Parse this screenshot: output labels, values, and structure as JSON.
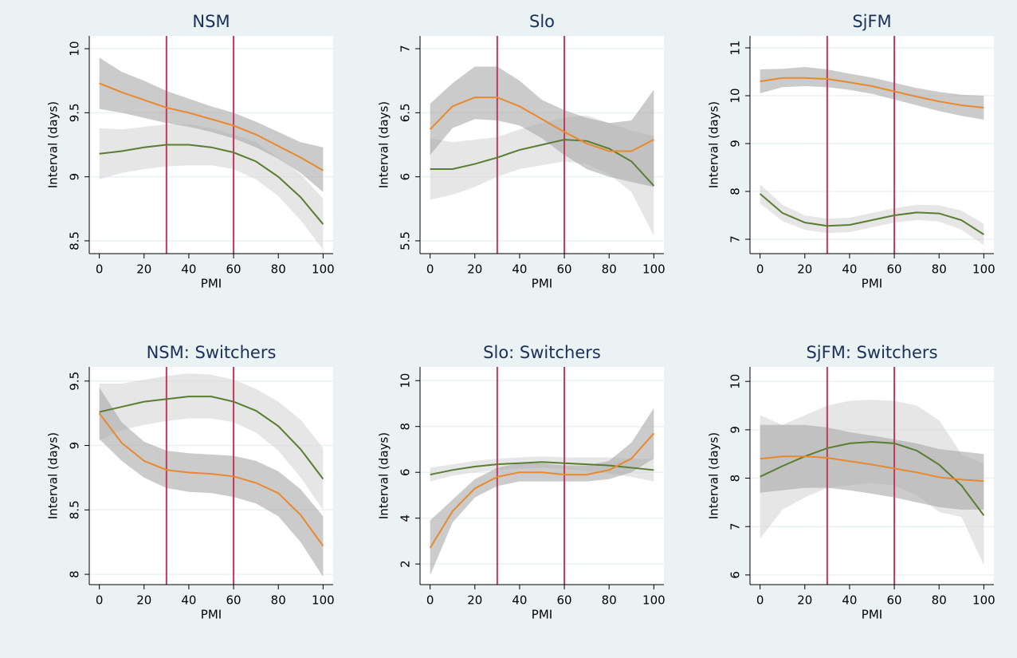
{
  "chart_data": [
    {
      "type": "line",
      "title": "NSM",
      "xlabel": "PMI",
      "ylabel": "Interval (days)",
      "x": [
        0,
        10,
        20,
        30,
        40,
        50,
        60,
        70,
        80,
        90,
        100
      ],
      "xlim": [
        -4.5,
        104.5
      ],
      "xticks": [
        0,
        20,
        40,
        60,
        80,
        100
      ],
      "ylim": [
        8.4,
        10.1
      ],
      "yticks": [
        8.5,
        9,
        9.5,
        10
      ],
      "grid": true,
      "vlines": [
        30,
        60
      ],
      "vline_color": "#c0395a",
      "series": [
        {
          "color": "#5a7d32",
          "band_color": "#d6d6d6",
          "values": [
            9.18,
            9.2,
            9.23,
            9.25,
            9.25,
            9.23,
            9.19,
            9.12,
            9.0,
            8.84,
            8.63
          ],
          "lower": [
            8.98,
            9.03,
            9.06,
            9.08,
            9.09,
            9.09,
            9.06,
            8.98,
            8.85,
            8.66,
            8.43
          ],
          "upper": [
            9.38,
            9.37,
            9.39,
            9.41,
            9.41,
            9.38,
            9.33,
            9.27,
            9.15,
            9.02,
            8.83
          ]
        },
        {
          "color": "#e8892e",
          "band_color": "#a8a8a8",
          "values": [
            9.73,
            9.66,
            9.6,
            9.54,
            9.5,
            9.45,
            9.4,
            9.33,
            9.24,
            9.15,
            9.05
          ],
          "lower": [
            9.53,
            9.5,
            9.46,
            9.42,
            9.39,
            9.35,
            9.3,
            9.23,
            9.14,
            9.03,
            8.88
          ],
          "upper": [
            9.93,
            9.82,
            9.75,
            9.67,
            9.61,
            9.55,
            9.5,
            9.43,
            9.35,
            9.27,
            9.23
          ]
        }
      ]
    },
    {
      "type": "line",
      "title": "Slo",
      "xlabel": "PMI",
      "ylabel": "Interval (days)",
      "x": [
        0,
        10,
        20,
        30,
        40,
        50,
        60,
        70,
        80,
        90,
        100
      ],
      "xlim": [
        -4.5,
        104.5
      ],
      "xticks": [
        0,
        20,
        40,
        60,
        80,
        100
      ],
      "ylim": [
        5.4,
        7.1
      ],
      "yticks": [
        5.5,
        6,
        6.5,
        7
      ],
      "grid": true,
      "vlines": [
        30,
        60
      ],
      "vline_color": "#c0395a",
      "series": [
        {
          "color": "#5a7d32",
          "band_color": "#d6d6d6",
          "values": [
            6.06,
            6.06,
            6.1,
            6.15,
            6.21,
            6.25,
            6.29,
            6.28,
            6.22,
            6.12,
            5.93
          ],
          "lower": [
            5.82,
            5.86,
            5.92,
            6.0,
            6.06,
            6.09,
            6.12,
            6.1,
            6.02,
            5.88,
            5.54
          ],
          "upper": [
            6.3,
            6.27,
            6.29,
            6.31,
            6.37,
            6.42,
            6.46,
            6.48,
            6.42,
            6.36,
            6.32
          ]
        },
        {
          "color": "#e8892e",
          "band_color": "#a8a8a8",
          "values": [
            6.37,
            6.55,
            6.62,
            6.62,
            6.55,
            6.45,
            6.35,
            6.26,
            6.2,
            6.2,
            6.29
          ],
          "lower": [
            6.17,
            6.38,
            6.45,
            6.44,
            6.4,
            6.3,
            6.17,
            6.06,
            6.0,
            5.96,
            5.92
          ],
          "upper": [
            6.57,
            6.73,
            6.86,
            6.86,
            6.75,
            6.6,
            6.52,
            6.46,
            6.42,
            6.44,
            6.68
          ]
        }
      ]
    },
    {
      "type": "line",
      "title": "SjFM",
      "xlabel": "PMI",
      "ylabel": "Interval (days)",
      "x": [
        0,
        10,
        20,
        30,
        40,
        50,
        60,
        70,
        80,
        90,
        100
      ],
      "xlim": [
        -4.5,
        104.5
      ],
      "xticks": [
        0,
        20,
        40,
        60,
        80,
        100
      ],
      "ylim": [
        6.7,
        11.25
      ],
      "yticks": [
        7,
        8,
        9,
        10,
        11
      ],
      "grid": true,
      "vlines": [
        30,
        60
      ],
      "vline_color": "#c0395a",
      "series": [
        {
          "color": "#5a7d32",
          "band_color": "#d6d6d6",
          "values": [
            7.95,
            7.55,
            7.35,
            7.28,
            7.3,
            7.4,
            7.5,
            7.56,
            7.54,
            7.4,
            7.1
          ],
          "lower": [
            7.75,
            7.38,
            7.2,
            7.13,
            7.15,
            7.25,
            7.35,
            7.4,
            7.37,
            7.2,
            6.88
          ],
          "upper": [
            8.15,
            7.72,
            7.5,
            7.43,
            7.45,
            7.55,
            7.65,
            7.72,
            7.71,
            7.6,
            7.32
          ]
        },
        {
          "color": "#e8892e",
          "band_color": "#a8a8a8",
          "values": [
            10.3,
            10.37,
            10.37,
            10.35,
            10.28,
            10.2,
            10.09,
            9.98,
            9.88,
            9.8,
            9.75
          ],
          "lower": [
            10.05,
            10.18,
            10.2,
            10.18,
            10.12,
            10.04,
            9.92,
            9.8,
            9.68,
            9.58,
            9.5
          ],
          "upper": [
            10.55,
            10.56,
            10.6,
            10.55,
            10.46,
            10.38,
            10.27,
            10.16,
            10.08,
            10.02,
            10.0
          ]
        }
      ]
    },
    {
      "type": "line",
      "title": "NSM: Switchers",
      "xlabel": "PMI",
      "ylabel": "Interval (days)",
      "x": [
        0,
        10,
        20,
        30,
        40,
        50,
        60,
        70,
        80,
        90,
        100
      ],
      "xlim": [
        -4.5,
        104.5
      ],
      "xticks": [
        0,
        20,
        40,
        60,
        80,
        100
      ],
      "ylim": [
        7.92,
        9.61
      ],
      "yticks": [
        8,
        8.5,
        9,
        9.5
      ],
      "grid": true,
      "vlines": [
        30,
        60
      ],
      "vline_color": "#c0395a",
      "series": [
        {
          "color": "#5a7d32",
          "band_color": "#d6d6d6",
          "values": [
            9.26,
            9.3,
            9.34,
            9.36,
            9.38,
            9.38,
            9.34,
            9.27,
            9.15,
            8.97,
            8.74
          ],
          "lower": [
            9.04,
            9.12,
            9.16,
            9.19,
            9.21,
            9.21,
            9.18,
            9.1,
            8.96,
            8.75,
            8.5
          ],
          "upper": [
            9.48,
            9.48,
            9.51,
            9.54,
            9.56,
            9.55,
            9.51,
            9.44,
            9.34,
            9.2,
            8.98
          ]
        },
        {
          "color": "#e8892e",
          "band_color": "#a8a8a8",
          "values": [
            9.25,
            9.02,
            8.88,
            8.81,
            8.79,
            8.78,
            8.76,
            8.71,
            8.63,
            8.46,
            8.22
          ],
          "lower": [
            9.05,
            8.88,
            8.75,
            8.67,
            8.64,
            8.63,
            8.6,
            8.55,
            8.45,
            8.25,
            7.98
          ],
          "upper": [
            9.45,
            9.18,
            9.03,
            8.96,
            8.94,
            8.93,
            8.92,
            8.88,
            8.8,
            8.66,
            8.45
          ]
        }
      ]
    },
    {
      "type": "line",
      "title": "Slo: Switchers",
      "xlabel": "PMI",
      "ylabel": "Interval (days)",
      "x": [
        0,
        10,
        20,
        30,
        40,
        50,
        60,
        70,
        80,
        90,
        100
      ],
      "xlim": [
        -4.5,
        104.5
      ],
      "xticks": [
        0,
        20,
        40,
        60,
        80,
        100
      ],
      "ylim": [
        1.1,
        10.6
      ],
      "yticks": [
        2,
        4,
        6,
        8,
        10
      ],
      "grid": true,
      "vlines": [
        30,
        60
      ],
      "vline_color": "#c0395a",
      "series": [
        {
          "color": "#5a7d32",
          "band_color": "#d6d6d6",
          "values": [
            5.9,
            6.1,
            6.25,
            6.35,
            6.4,
            6.45,
            6.4,
            6.35,
            6.3,
            6.2,
            6.1
          ],
          "lower": [
            5.6,
            5.85,
            6.0,
            6.1,
            6.15,
            6.2,
            6.15,
            6.05,
            5.95,
            5.8,
            5.6
          ],
          "upper": [
            6.2,
            6.35,
            6.5,
            6.6,
            6.65,
            6.7,
            6.65,
            6.65,
            6.65,
            6.6,
            6.6
          ]
        },
        {
          "color": "#e8892e",
          "band_color": "#a8a8a8",
          "values": [
            2.7,
            4.3,
            5.3,
            5.8,
            6.0,
            6.0,
            5.9,
            5.9,
            6.1,
            6.6,
            7.7
          ],
          "lower": [
            1.5,
            3.8,
            4.9,
            5.4,
            5.6,
            5.6,
            5.6,
            5.6,
            5.7,
            6.0,
            6.6
          ],
          "upper": [
            3.9,
            4.8,
            5.7,
            6.2,
            6.4,
            6.4,
            6.3,
            6.3,
            6.5,
            7.3,
            8.8
          ]
        }
      ]
    },
    {
      "type": "line",
      "title": "SjFM: Switchers",
      "xlabel": "PMI",
      "ylabel": "Interval (days)",
      "x": [
        0,
        10,
        20,
        30,
        40,
        50,
        60,
        70,
        80,
        90,
        100
      ],
      "xlim": [
        -4.5,
        104.5
      ],
      "xticks": [
        0,
        20,
        40,
        60,
        80,
        100
      ],
      "ylim": [
        5.8,
        10.3
      ],
      "yticks": [
        6,
        7,
        8,
        9,
        10
      ],
      "grid": true,
      "vlines": [
        30,
        60
      ],
      "vline_color": "#c0395a",
      "series": [
        {
          "color": "#5a7d32",
          "band_color": "#d6d6d6",
          "values": [
            8.03,
            8.25,
            8.45,
            8.62,
            8.72,
            8.75,
            8.72,
            8.57,
            8.28,
            7.85,
            7.23
          ],
          "lower": [
            6.75,
            7.35,
            7.6,
            7.8,
            7.85,
            7.9,
            7.85,
            7.65,
            7.3,
            7.2,
            6.2
          ],
          "upper": [
            9.3,
            9.1,
            9.3,
            9.5,
            9.6,
            9.62,
            9.6,
            9.5,
            9.2,
            8.5,
            8.3
          ]
        },
        {
          "color": "#e8892e",
          "band_color": "#a8a8a8",
          "values": [
            8.4,
            8.45,
            8.45,
            8.42,
            8.35,
            8.28,
            8.2,
            8.12,
            8.02,
            7.97,
            7.94
          ],
          "lower": [
            7.7,
            7.75,
            7.8,
            7.8,
            7.75,
            7.68,
            7.6,
            7.5,
            7.4,
            7.35,
            7.35
          ],
          "upper": [
            9.1,
            9.1,
            9.1,
            9.05,
            8.95,
            8.88,
            8.8,
            8.72,
            8.6,
            8.55,
            8.5
          ]
        }
      ]
    }
  ]
}
